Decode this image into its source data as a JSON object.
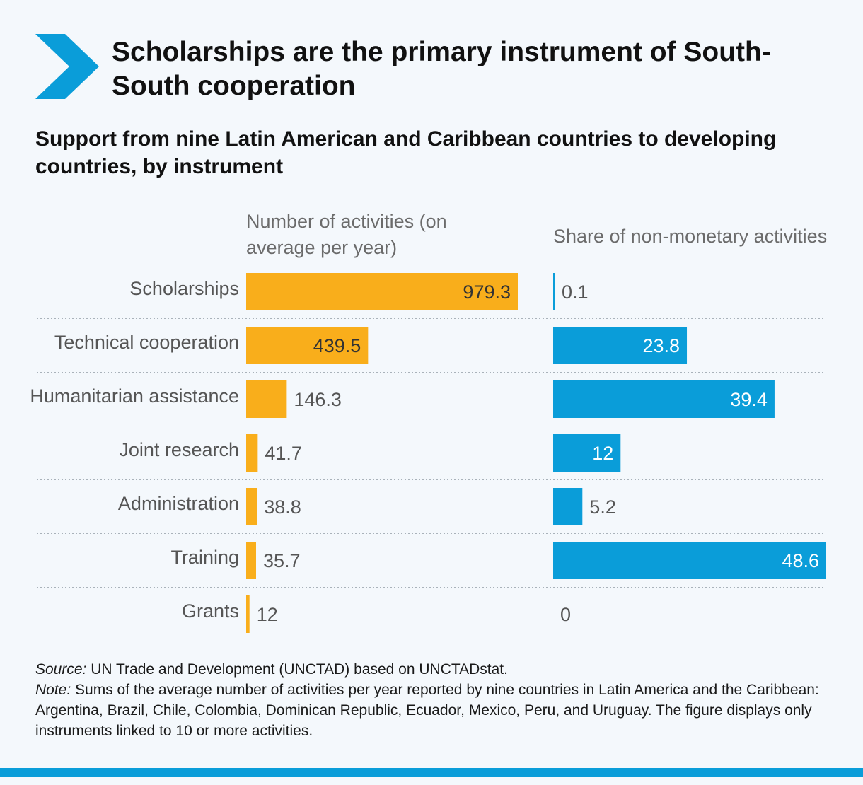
{
  "header": {
    "title": "Scholarships are the primary instrument of South-South cooperation",
    "subtitle": "Support from nine Latin American and Caribbean countries to developing countries, by instrument"
  },
  "chart_data": {
    "type": "bar",
    "categories": [
      "Scholarships",
      "Technical cooperation",
      "Humanitarian assistance",
      "Joint research",
      "Administration",
      "Training",
      "Grants"
    ],
    "panels": [
      {
        "title": "Number of activities (on average per year)",
        "values": [
          979.3,
          439.5,
          146.3,
          41.7,
          38.8,
          35.7,
          12
        ],
        "labels": [
          "979.3",
          "439.5",
          "146.3",
          "41.7",
          "38.8",
          "35.7",
          "12"
        ],
        "max": 979.3,
        "color": "#f9ae1b"
      },
      {
        "title": "Share of non-monetary activities",
        "values": [
          0.1,
          23.8,
          39.4,
          12,
          5.2,
          48.6,
          0
        ],
        "labels": [
          "0.1",
          "23.8",
          "39.4",
          "12",
          "5.2",
          "48.6",
          "0"
        ],
        "max": 48.6,
        "color": "#0a9dd9"
      }
    ],
    "orientation": "horizontal",
    "grid": false,
    "legend": "none"
  },
  "notes": {
    "source_label": "Source:",
    "source_text": " UN Trade and Development (UNCTAD) based on UNCTADstat.",
    "note_label": "Note:",
    "note_text": " Sums of the average number of activities per year reported by nine countries in Latin America and the Caribbean: Argentina, Brazil, Chile, Colombia, Dominican Republic, Ecuador, Mexico, Peru, and Uruguay. The figure displays only instruments linked to 10 or more activities."
  },
  "colors": {
    "accent_blue": "#0a9dd9",
    "accent_orange": "#f9ae1b"
  }
}
